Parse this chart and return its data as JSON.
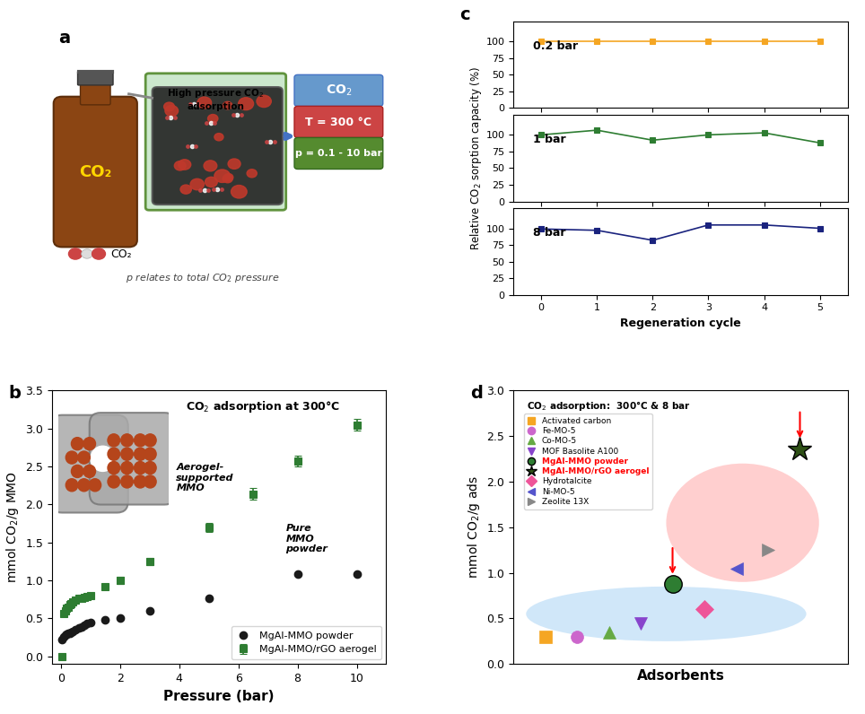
{
  "panel_b": {
    "title": "CO$_2$ adsorption at 300°C",
    "xlabel": "Pressure (bar)",
    "ylabel": "mmol CO$_2$/g MMO",
    "xlim": [
      -0.3,
      11
    ],
    "ylim": [
      -0.1,
      3.5
    ],
    "aerogel_x": [
      0.05,
      0.1,
      0.15,
      0.2,
      0.25,
      0.3,
      0.35,
      0.4,
      0.5,
      0.6,
      0.7,
      0.8,
      0.9,
      1.0,
      1.5,
      2.0,
      3.0,
      5.0,
      6.5,
      8.0,
      10.0
    ],
    "aerogel_y": [
      0.0,
      0.57,
      0.6,
      0.63,
      0.65,
      0.68,
      0.7,
      0.72,
      0.74,
      0.76,
      0.77,
      0.78,
      0.79,
      0.8,
      0.92,
      1.0,
      1.25,
      1.7,
      2.14,
      2.57,
      3.05
    ],
    "aerogel_yerr": [
      0.0,
      0.0,
      0.0,
      0.0,
      0.0,
      0.0,
      0.0,
      0.0,
      0.0,
      0.0,
      0.0,
      0.0,
      0.0,
      0.0,
      0.0,
      0.05,
      0.05,
      0.06,
      0.08,
      0.07,
      0.08
    ],
    "powder_x": [
      0.05,
      0.1,
      0.15,
      0.2,
      0.25,
      0.3,
      0.35,
      0.4,
      0.5,
      0.6,
      0.7,
      0.8,
      0.9,
      1.0,
      1.5,
      2.0,
      3.0,
      5.0,
      8.0,
      10.0
    ],
    "powder_y": [
      0.22,
      0.26,
      0.28,
      0.29,
      0.3,
      0.31,
      0.32,
      0.33,
      0.35,
      0.37,
      0.39,
      0.41,
      0.43,
      0.45,
      0.48,
      0.51,
      0.6,
      0.77,
      1.08,
      1.08
    ],
    "aerogel_color": "#2e7d32",
    "powder_color": "#1a1a1a",
    "aerogel_label": "MgAl-MMO/rGO aerogel",
    "powder_label": "MgAl-MMO powder",
    "annot_aerogel": "Aerogel-\nsupported\nMMO",
    "annot_powder": "Pure\nMMO\npowder"
  },
  "panel_c": {
    "ylabel": "Relative CO$_2$ sorption capacity (%)",
    "xlabel": "Regeneration cycle",
    "xlim": [
      -0.5,
      5.5
    ],
    "bar02_x": [
      0,
      1,
      2,
      3,
      4,
      5
    ],
    "bar02_y": [
      100,
      100,
      100,
      100,
      100,
      100
    ],
    "bar1_x": [
      0,
      1,
      2,
      3,
      4,
      5
    ],
    "bar1_y": [
      100,
      107,
      92,
      100,
      103,
      88
    ],
    "bar8_x": [
      0,
      1,
      2,
      3,
      4,
      5
    ],
    "bar8_y": [
      99,
      97,
      82,
      105,
      105,
      100
    ],
    "color_02": "#f5a623",
    "color_1": "#2e7d32",
    "color_8": "#1a237e",
    "label_02": "0.2 bar",
    "label_1": "1 bar",
    "label_8": "8 bar"
  },
  "panel_d": {
    "title": "CO$_2$ adsorption:  300°C & 8 bar",
    "xlabel": "Adsorbents",
    "ylabel": "mmol CO$_2$/g ads",
    "ylim": [
      0.0,
      3.0
    ],
    "adsorbents": [
      "Activated carbon",
      "Fe-MO-5",
      "Co-MO-5",
      "MOF Basolite A100",
      "MgAl-MMO powder",
      "MgAl-MMO/rGO aerogel",
      "Hydrotalcite",
      "Ni-MO-5",
      "Zeolite 13X"
    ],
    "x_positions": [
      1,
      2,
      3,
      4,
      5,
      9,
      6,
      7,
      8
    ],
    "y_values": [
      0.3,
      0.3,
      0.35,
      0.45,
      0.88,
      2.35,
      0.6,
      1.05,
      1.25
    ],
    "markers": [
      "s",
      "o",
      "^",
      "v",
      "o",
      "*",
      "D",
      "<",
      ">"
    ],
    "colors": [
      "#f5a623",
      "#cc66cc",
      "#66aa44",
      "#8844cc",
      "#2e7d32",
      "#2e5016",
      "#ee5599",
      "#5555cc",
      "#888888"
    ],
    "markersizes": [
      10,
      10,
      10,
      10,
      14,
      20,
      10,
      10,
      10
    ]
  },
  "background_color": "#ffffff"
}
